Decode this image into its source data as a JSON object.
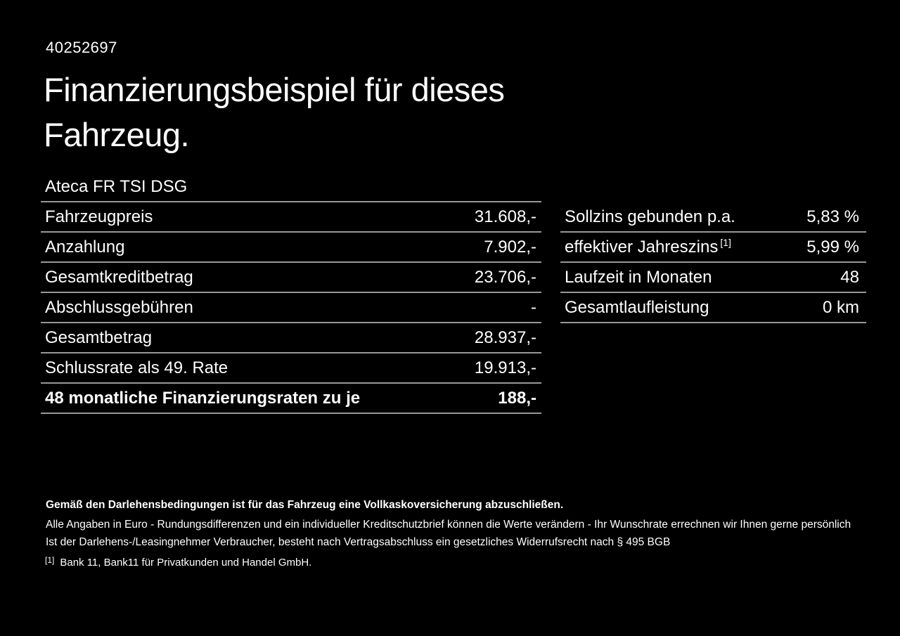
{
  "page": {
    "id_number": "40252697",
    "title_line1": "Finanzierungsbeispiel für dieses",
    "title_line2": "Fahrzeug.",
    "vehicle_model": "Ateca FR TSI DSG"
  },
  "finance_table_left": {
    "rows": [
      {
        "label": "Fahrzeugpreis",
        "value": "31.608,-"
      },
      {
        "label": "Anzahlung",
        "value": "7.902,-"
      },
      {
        "label": "Gesamtkreditbetrag",
        "value": "23.706,-"
      },
      {
        "label": "Abschlussgebühren",
        "value": "-"
      },
      {
        "label": "Gesamtbetrag",
        "value": "28.937,-"
      },
      {
        "label": "Schlussrate als 49. Rate",
        "value": "19.913,-"
      },
      {
        "label": "48 monatliche Finanzierungsraten zu je",
        "value": "188,-"
      }
    ]
  },
  "finance_table_right": {
    "rows": [
      {
        "label": "Sollzins gebunden p.a.",
        "value": "5,83 %"
      },
      {
        "label": "effektiver Jahreszins",
        "footnote_marker": "[1]",
        "value": "5,99 %"
      },
      {
        "label": "Laufzeit in Monaten",
        "value": "48"
      },
      {
        "label": "Gesamtlaufleistung",
        "value": "0 km"
      }
    ]
  },
  "footer": {
    "bold_note": "Gemäß den Darlehensbedingungen ist für das Fahrzeug eine Vollkaskoversicherung abzuschließen.",
    "note_line1": "Alle Angaben in Euro - Rundungsdifferenzen und ein individueller Kreditschutzbrief können die Werte verändern - Ihr Wunschrate errechnen wir Ihnen gerne persönlich",
    "note_line2": "Ist der Darlehens-/Leasingnehmer Verbraucher, besteht nach Vertragsabschluss ein gesetzliches Widerrufsrecht nach § 495 BGB",
    "footnote_marker": "[1]",
    "footnote_text": "Bank 11, Bank11 für Privatkunden und Handel GmbH."
  },
  "colors": {
    "background": "#000000",
    "text": "#ffffff",
    "divider": "#989898"
  }
}
